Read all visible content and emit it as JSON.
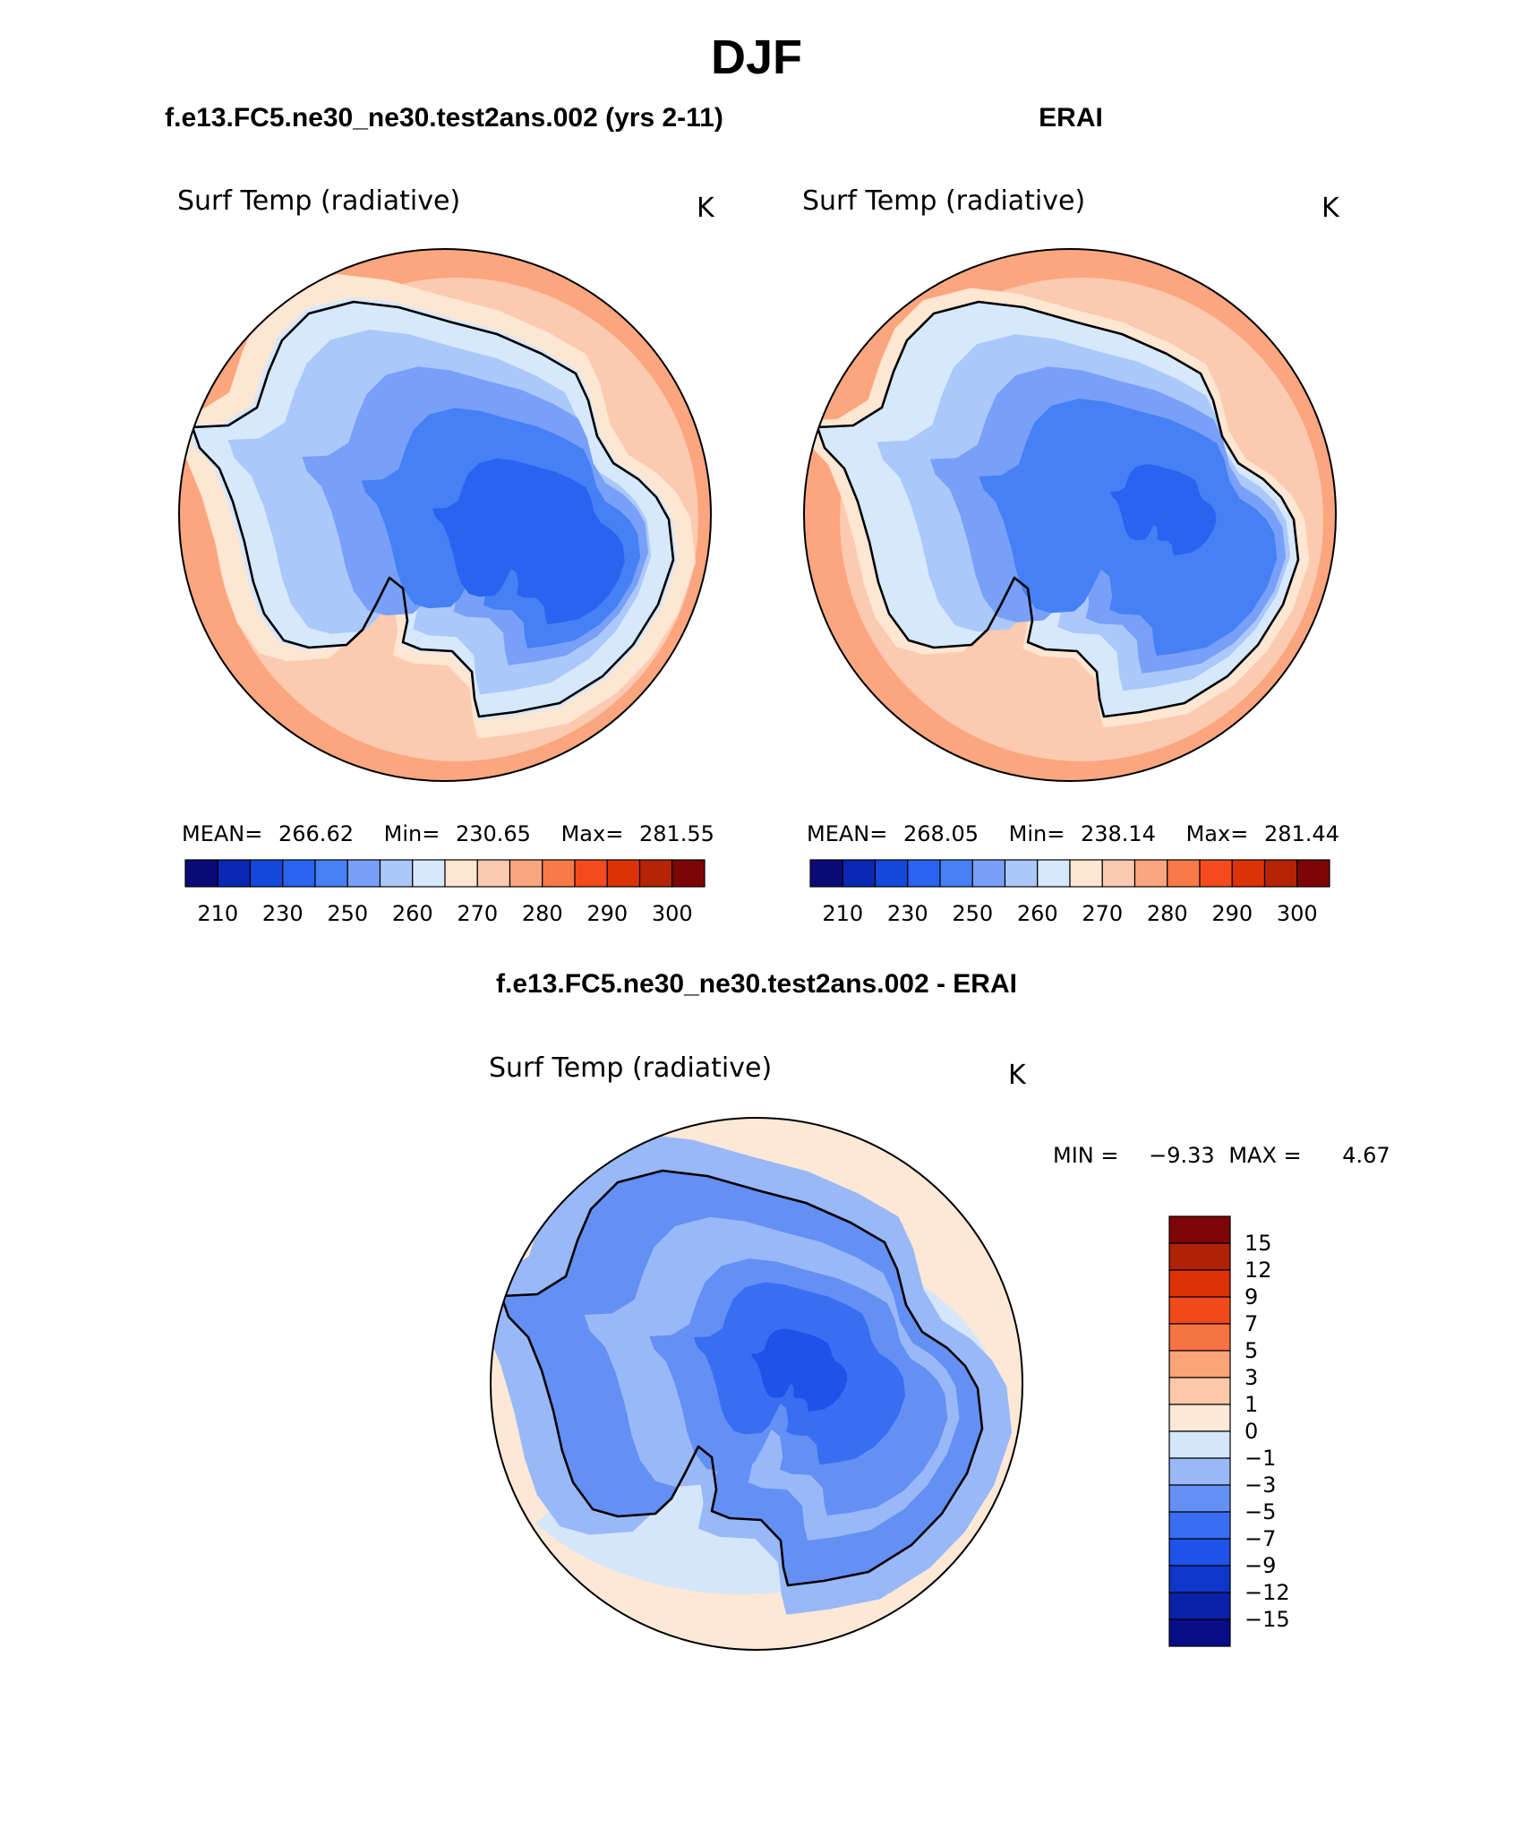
{
  "page": {
    "title": "DJF",
    "diff_title": "f.e13.FC5.ne30_ne30.test2ans.002 - ERAI"
  },
  "chart_data": [
    {
      "type": "heatmap",
      "id": "model",
      "case_title": "f.e13.FC5.ne30_ne30.test2ans.002 (yrs 2-11)",
      "variable": "Surf Temp (radiative)",
      "units": "K",
      "projection": "south-polar-stereographic",
      "stats": {
        "mean_label": "MEAN=",
        "mean": "266.62",
        "min_label": "Min=",
        "min": "230.65",
        "max_label": "Max=",
        "max": "281.55"
      },
      "levels": [
        210,
        220,
        230,
        240,
        250,
        255,
        260,
        265,
        270,
        275,
        280,
        285,
        290,
        295,
        300
      ],
      "colorbar_labels": [
        "210",
        "230",
        "250",
        "260",
        "270",
        "280",
        "290",
        "300"
      ],
      "colors": [
        "#0a0a78",
        "#0a28b4",
        "#1448dc",
        "#2864f0",
        "#4680f5",
        "#78a0f8",
        "#aac8fa",
        "#d6e8fc",
        "#fde6d2",
        "#fccab0",
        "#fba67f",
        "#f87a48",
        "#f44a1e",
        "#dc3208",
        "#b42405",
        "#7e0505"
      ],
      "orientation": "horizontal"
    },
    {
      "type": "heatmap",
      "id": "obs",
      "case_title": "ERAI",
      "variable": "Surf Temp (radiative)",
      "units": "K",
      "projection": "south-polar-stereographic",
      "stats": {
        "mean_label": "MEAN=",
        "mean": "268.05",
        "min_label": "Min=",
        "min": "238.14",
        "max_label": "Max=",
        "max": "281.44"
      },
      "levels": [
        210,
        220,
        230,
        240,
        250,
        255,
        260,
        265,
        270,
        275,
        280,
        285,
        290,
        295,
        300
      ],
      "colorbar_labels": [
        "210",
        "230",
        "250",
        "260",
        "270",
        "280",
        "290",
        "300"
      ],
      "colors": [
        "#0a0a78",
        "#0a28b4",
        "#1448dc",
        "#2864f0",
        "#4680f5",
        "#78a0f8",
        "#aac8fa",
        "#d6e8fc",
        "#fde6d2",
        "#fccab0",
        "#fba67f",
        "#f87a48",
        "#f44a1e",
        "#dc3208",
        "#b42405",
        "#7e0505"
      ],
      "orientation": "horizontal"
    },
    {
      "type": "heatmap",
      "id": "diff",
      "variable": "Surf Temp (radiative)",
      "units": "K",
      "projection": "south-polar-stereographic",
      "stats": {
        "min_label": "MIN =",
        "min": "−9.33",
        "max_label": "MAX =",
        "max": "4.67"
      },
      "levels": [
        -15,
        -12,
        -9,
        -7,
        -5,
        -3,
        -1,
        0,
        1,
        3,
        5,
        7,
        9,
        12,
        15
      ],
      "colorbar_labels": [
        "15",
        "12",
        "9",
        "7",
        "5",
        "3",
        "1",
        "0",
        "−1",
        "−3",
        "−5",
        "−7",
        "−9",
        "−12",
        "−15"
      ],
      "colors": [
        "#080e86",
        "#0a22a8",
        "#0e36c8",
        "#1e52e8",
        "#3a6ef2",
        "#6490f4",
        "#98b8f8",
        "#d4e6fa",
        "#fde8d6",
        "#fcc8a8",
        "#faa478",
        "#f67442",
        "#f04a1a",
        "#dc3206",
        "#b02205",
        "#7e0606"
      ],
      "orientation": "vertical"
    }
  ]
}
